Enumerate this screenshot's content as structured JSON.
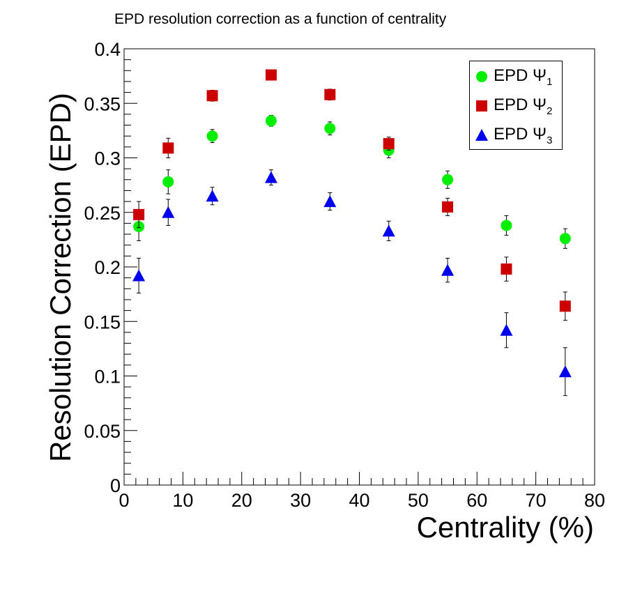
{
  "chart_data": {
    "type": "scatter",
    "title": "EPD resolution correction as a function of centrality",
    "xlabel": "Centrality (%)",
    "ylabel": "Resolution Correction (EPD)",
    "xlim": [
      0,
      80
    ],
    "ylim": [
      0,
      0.4
    ],
    "xticks": [
      "0",
      "10",
      "20",
      "30",
      "40",
      "50",
      "60",
      "70",
      "80"
    ],
    "yticks": [
      "0",
      "0.05",
      "0.1",
      "0.15",
      "0.2",
      "0.25",
      "0.3",
      "0.35",
      "0.4"
    ],
    "grid": false,
    "legend_position": "top-right",
    "x": [
      2.5,
      7.5,
      15,
      25,
      35,
      45,
      55,
      65,
      75
    ],
    "series": [
      {
        "name": "EPD Ψ1",
        "label_main": "EPD Ψ",
        "label_sub": "1",
        "marker": "circle",
        "color": "#00ee00",
        "values": [
          0.237,
          0.278,
          0.32,
          0.334,
          0.327,
          0.307,
          0.28,
          0.238,
          0.226
        ],
        "errors": [
          0.013,
          0.011,
          0.006,
          0.005,
          0.006,
          0.007,
          0.008,
          0.009,
          0.009
        ]
      },
      {
        "name": "EPD Ψ2",
        "label_main": "EPD Ψ",
        "label_sub": "2",
        "marker": "square",
        "color": "#cc0000",
        "values": [
          0.248,
          0.309,
          0.357,
          0.376,
          0.358,
          0.313,
          0.255,
          0.198,
          0.164
        ],
        "errors": [
          0.012,
          0.009,
          0.005,
          0.004,
          0.005,
          0.006,
          0.008,
          0.011,
          0.013
        ]
      },
      {
        "name": "EPD Ψ3",
        "label_main": "EPD Ψ",
        "label_sub": "3",
        "marker": "triangle",
        "color": "#0000ee",
        "values": [
          0.192,
          0.25,
          0.265,
          0.282,
          0.26,
          0.233,
          0.197,
          0.142,
          0.104
        ],
        "errors": [
          0.016,
          0.012,
          0.008,
          0.007,
          0.008,
          0.009,
          0.011,
          0.016,
          0.022
        ]
      }
    ]
  }
}
